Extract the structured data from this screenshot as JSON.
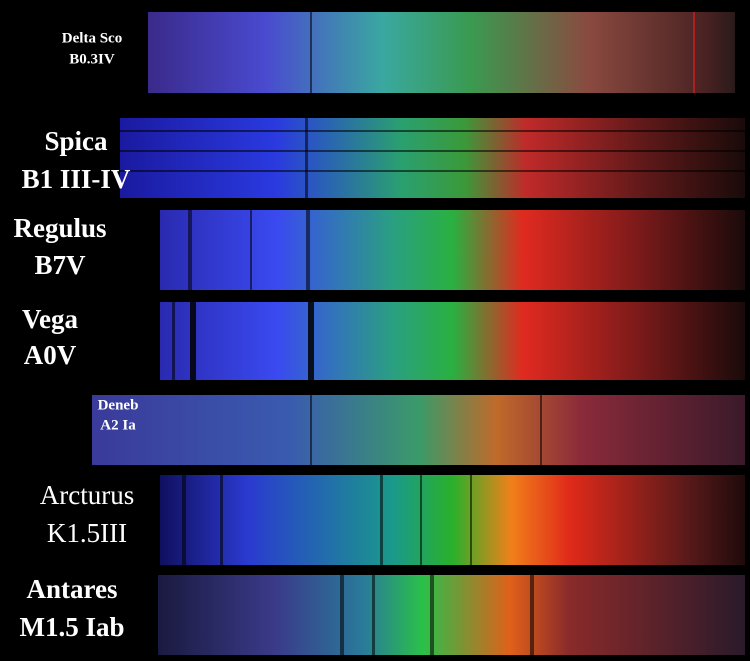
{
  "stars": [
    {
      "name": "Delta Sco",
      "type": "B0.3IV"
    },
    {
      "name": "Spica",
      "type": "B1 III-IV"
    },
    {
      "name": "Regulus",
      "type": "B7V"
    },
    {
      "name": "Vega",
      "type": "A0V"
    },
    {
      "name": "Deneb",
      "type": "A2 Ia"
    },
    {
      "name": "Arcturus",
      "type": "K1.5III"
    },
    {
      "name": "Antares",
      "type": "M1.5 Iab"
    }
  ]
}
